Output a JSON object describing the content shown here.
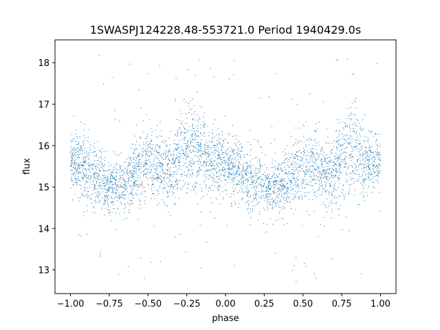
{
  "chart_data": {
    "type": "scatter",
    "title": "1SWASPJ124228.48-553721.0 Period 1940429.0s",
    "xlabel": "phase",
    "ylabel": "flux",
    "xlim": [
      -1.1,
      1.1
    ],
    "ylim": [
      12.43,
      18.55
    ],
    "xticks": [
      -1.0,
      -0.75,
      -0.5,
      -0.25,
      0.0,
      0.25,
      0.5,
      0.75,
      1.0
    ],
    "xtick_labels": [
      "−1.00",
      "−0.75",
      "−0.50",
      "−0.25",
      "0.00",
      "0.25",
      "0.50",
      "0.75",
      "1.00"
    ],
    "yticks": [
      13,
      14,
      15,
      16,
      17,
      18
    ],
    "ytick_labels": [
      "13",
      "14",
      "15",
      "16",
      "17",
      "18"
    ],
    "grid": false,
    "legend": "none",
    "point_color": "#1f77b4",
    "series": [
      {
        "phase": [
          -1.0,
          -0.95,
          -0.9,
          -0.85,
          -0.8,
          -0.75,
          -0.7,
          -0.65,
          -0.6,
          -0.55,
          -0.5,
          -0.45,
          -0.4,
          -0.35,
          -0.3,
          -0.25,
          -0.2,
          -0.15,
          -0.1,
          -0.05,
          0.0,
          0.05,
          0.1,
          0.15,
          0.2,
          0.25,
          0.3,
          0.35,
          0.4,
          0.45,
          0.5,
          0.55,
          0.6,
          0.65,
          0.7,
          0.75,
          0.8,
          0.85,
          0.9,
          0.95,
          1.0
        ],
        "mean_flux": [
          15.6,
          15.55,
          15.4,
          15.25,
          15.1,
          15.05,
          15.05,
          15.1,
          15.3,
          15.45,
          15.55,
          15.5,
          15.35,
          15.4,
          15.7,
          15.9,
          16.0,
          15.75,
          15.6,
          15.6,
          15.6,
          15.45,
          15.3,
          15.15,
          15.1,
          15.05,
          15.0,
          15.0,
          15.1,
          15.35,
          15.5,
          15.55,
          15.45,
          15.3,
          15.35,
          15.7,
          15.95,
          15.8,
          15.6,
          15.55,
          15.6
        ],
        "spread": [
          0.45,
          0.5,
          0.55,
          0.55,
          0.5,
          0.45,
          0.4,
          0.45,
          0.55,
          0.6,
          0.6,
          0.6,
          0.55,
          0.6,
          0.65,
          0.7,
          0.7,
          0.6,
          0.55,
          0.5,
          0.45,
          0.5,
          0.55,
          0.55,
          0.5,
          0.45,
          0.45,
          0.45,
          0.5,
          0.55,
          0.6,
          0.6,
          0.6,
          0.55,
          0.6,
          0.65,
          0.7,
          0.65,
          0.55,
          0.5,
          0.45
        ]
      }
    ]
  }
}
